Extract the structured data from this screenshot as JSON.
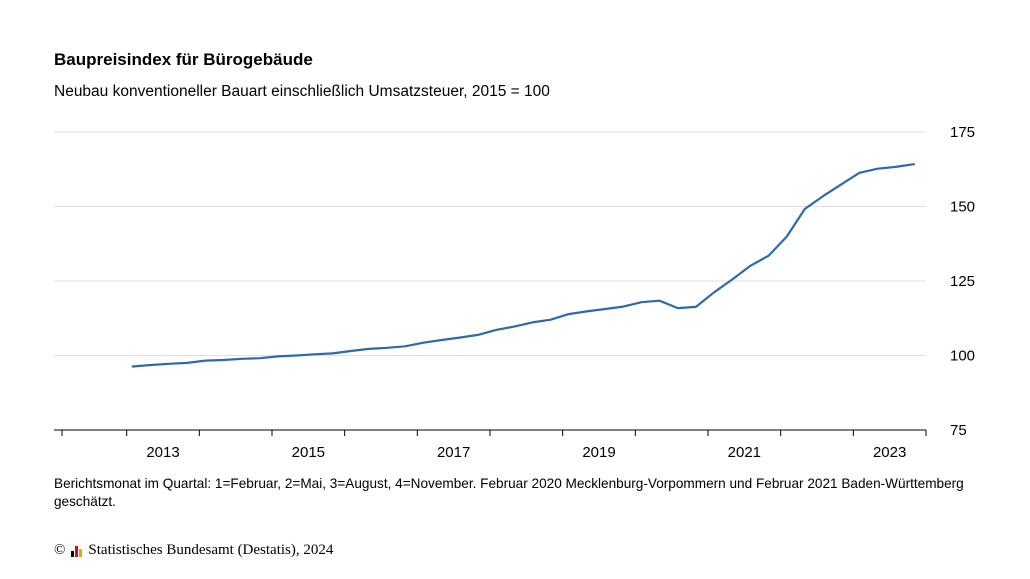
{
  "title": "Baupreisindex für Bürogebäude",
  "subtitle": "Neubau konventioneller Bauart einschließlich Umsatzsteuer, 2015 = 100",
  "footnote": "Berichtsmonat im Quartal: 1=Februar, 2=Mai, 3=August, 4=November. Februar 2020 Mecklenburg-Vorpommern und Februar 2021 Baden-Württemberg geschätzt.",
  "copyright": {
    "symbol": "©",
    "text": "Statistisches Bundesamt (Destatis), 2024",
    "logo_colors": [
      "#000000",
      "#e30613",
      "#f5a300"
    ]
  },
  "colors": {
    "line": "#2e6aaa",
    "grid": "#e0e0e0",
    "axis": "#000000"
  },
  "chart_data": {
    "type": "line",
    "title": "Baupreisindex für Bürogebäude",
    "subtitle": "Neubau konventioneller Bauart einschließlich Umsatzsteuer, 2015 = 100",
    "xlabel": "",
    "ylabel": "",
    "ylim": [
      75,
      175
    ],
    "yticks": [
      "75",
      "100",
      "125",
      "150",
      "175"
    ],
    "xticks": [
      "2013",
      "2015",
      "2017",
      "2019",
      "2021",
      "2023"
    ],
    "xrange": [
      "2012",
      "2024"
    ],
    "grid": "horizontal",
    "y_axis_position": "right",
    "series": [
      {
        "x": [
          "2013-02",
          "2013-05",
          "2013-08",
          "2013-11",
          "2014-02",
          "2014-05",
          "2014-08",
          "2014-11",
          "2015-02",
          "2015-05",
          "2015-08",
          "2015-11",
          "2016-02",
          "2016-05",
          "2016-08",
          "2016-11",
          "2017-02",
          "2017-05",
          "2017-08",
          "2017-11",
          "2018-02",
          "2018-05",
          "2018-08",
          "2018-11",
          "2019-02",
          "2019-05",
          "2019-08",
          "2019-11",
          "2020-02",
          "2020-05",
          "2020-08",
          "2020-11",
          "2021-02",
          "2021-05",
          "2021-08",
          "2021-11",
          "2022-02",
          "2022-05",
          "2022-08",
          "2022-11",
          "2023-02",
          "2023-05",
          "2023-08",
          "2023-11"
        ],
        "values": [
          96.3,
          96.8,
          97.2,
          97.5,
          98.3,
          98.5,
          98.9,
          99.1,
          99.7,
          100.0,
          100.4,
          100.7,
          101.5,
          102.2,
          102.6,
          103.1,
          104.3,
          105.2,
          106.0,
          106.9,
          108.6,
          109.7,
          111.1,
          112.0,
          113.9,
          114.8,
          115.6,
          116.4,
          117.9,
          118.4,
          115.9,
          116.3,
          121.2,
          125.5,
          130.1,
          133.5,
          139.9,
          149.2,
          153.5,
          157.4,
          161.3,
          162.7,
          163.3,
          164.2
        ]
      }
    ]
  }
}
